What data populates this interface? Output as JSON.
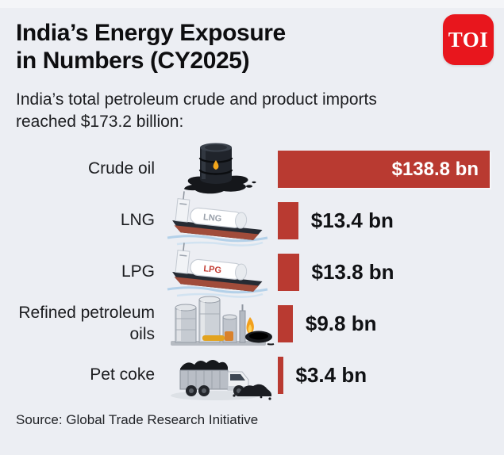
{
  "header": {
    "title_line1": "India’s Energy Exposure",
    "title_line2": "in Numbers (CY2025)",
    "subtitle_line1": "India’s total petroleum crude and product imports",
    "subtitle_line2": "reached $173.2 billion:",
    "logo_text": "TOI"
  },
  "chart_data": {
    "type": "bar",
    "orientation": "horizontal",
    "title": "India’s Energy Exposure in Numbers (CY2025)",
    "subtitle": "India’s total petroleum crude and product imports reached $173.2 billion",
    "total_imports": "$173.2 billion",
    "unit": "USD billion",
    "categories": [
      "Crude oil",
      "LNG",
      "LPG",
      "Refined petroleum oils",
      "Pet coke"
    ],
    "values": [
      138.8,
      13.4,
      13.8,
      9.8,
      3.4
    ],
    "value_labels": [
      "$138.8 bn",
      "$13.4 bn",
      "$13.8 bn",
      "$9.8 bn",
      "$3.4 bn"
    ],
    "xlim": [
      0,
      138.8
    ],
    "grid": false,
    "legend": false,
    "bar_color": "#b93a31",
    "icons": [
      "oil-barrel-icon",
      "lng-tanker-ship-icon",
      "lpg-tanker-ship-icon",
      "refinery-tanks-icon",
      "coal-truck-icon"
    ],
    "ship_tank_texts": {
      "lng": "LNG",
      "lpg": "LPG"
    }
  },
  "footer": {
    "source": "Source: Global Trade Research Initiative"
  },
  "colors": {
    "background": "#eceef3",
    "bar": "#b93a31",
    "logo_red": "#e8161d",
    "value_text_inside": "#ffffff",
    "value_text_outside": "#101114"
  }
}
